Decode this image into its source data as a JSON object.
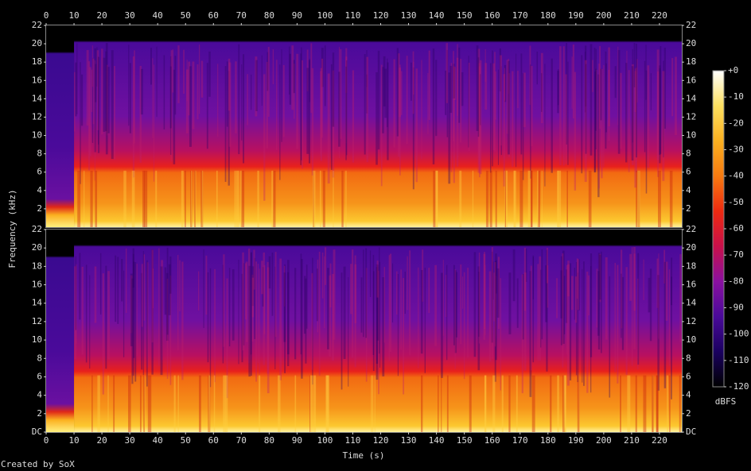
{
  "chart_data": {
    "type": "spectrogram",
    "x_label": "Time (s)",
    "y_label": "Frequency (kHz)",
    "xlim": [
      0,
      228
    ],
    "xticks": [
      0,
      10,
      20,
      30,
      40,
      50,
      60,
      70,
      80,
      90,
      100,
      110,
      120,
      130,
      140,
      150,
      160,
      170,
      180,
      190,
      200,
      210,
      220
    ],
    "channels": [
      {
        "ylim": [
          0,
          22
        ],
        "yticks": [
          2,
          4,
          6,
          8,
          10,
          12,
          14,
          16,
          18,
          20,
          22
        ]
      },
      {
        "ylim": [
          0,
          22
        ],
        "yticks": [
          {
            "value": 0,
            "label": "DC"
          },
          2,
          4,
          6,
          8,
          10,
          12,
          14,
          16,
          18,
          20,
          22
        ]
      }
    ],
    "colorbar": {
      "label": "dBFS",
      "lim": [
        -120,
        0
      ],
      "ticks": [
        {
          "value": 0,
          "label": "+0"
        },
        -10,
        -20,
        -30,
        -40,
        -50,
        -60,
        -70,
        -80,
        -90,
        -100,
        -110,
        -120
      ],
      "colors": [
        "#000000",
        "#1a0060",
        "#4a0a9a",
        "#8a10a0",
        "#c8104a",
        "#ee2a10",
        "#f77a10",
        "#fbb020",
        "#fde060",
        "#ffffff"
      ]
    },
    "credit": "Created by SoX"
  }
}
